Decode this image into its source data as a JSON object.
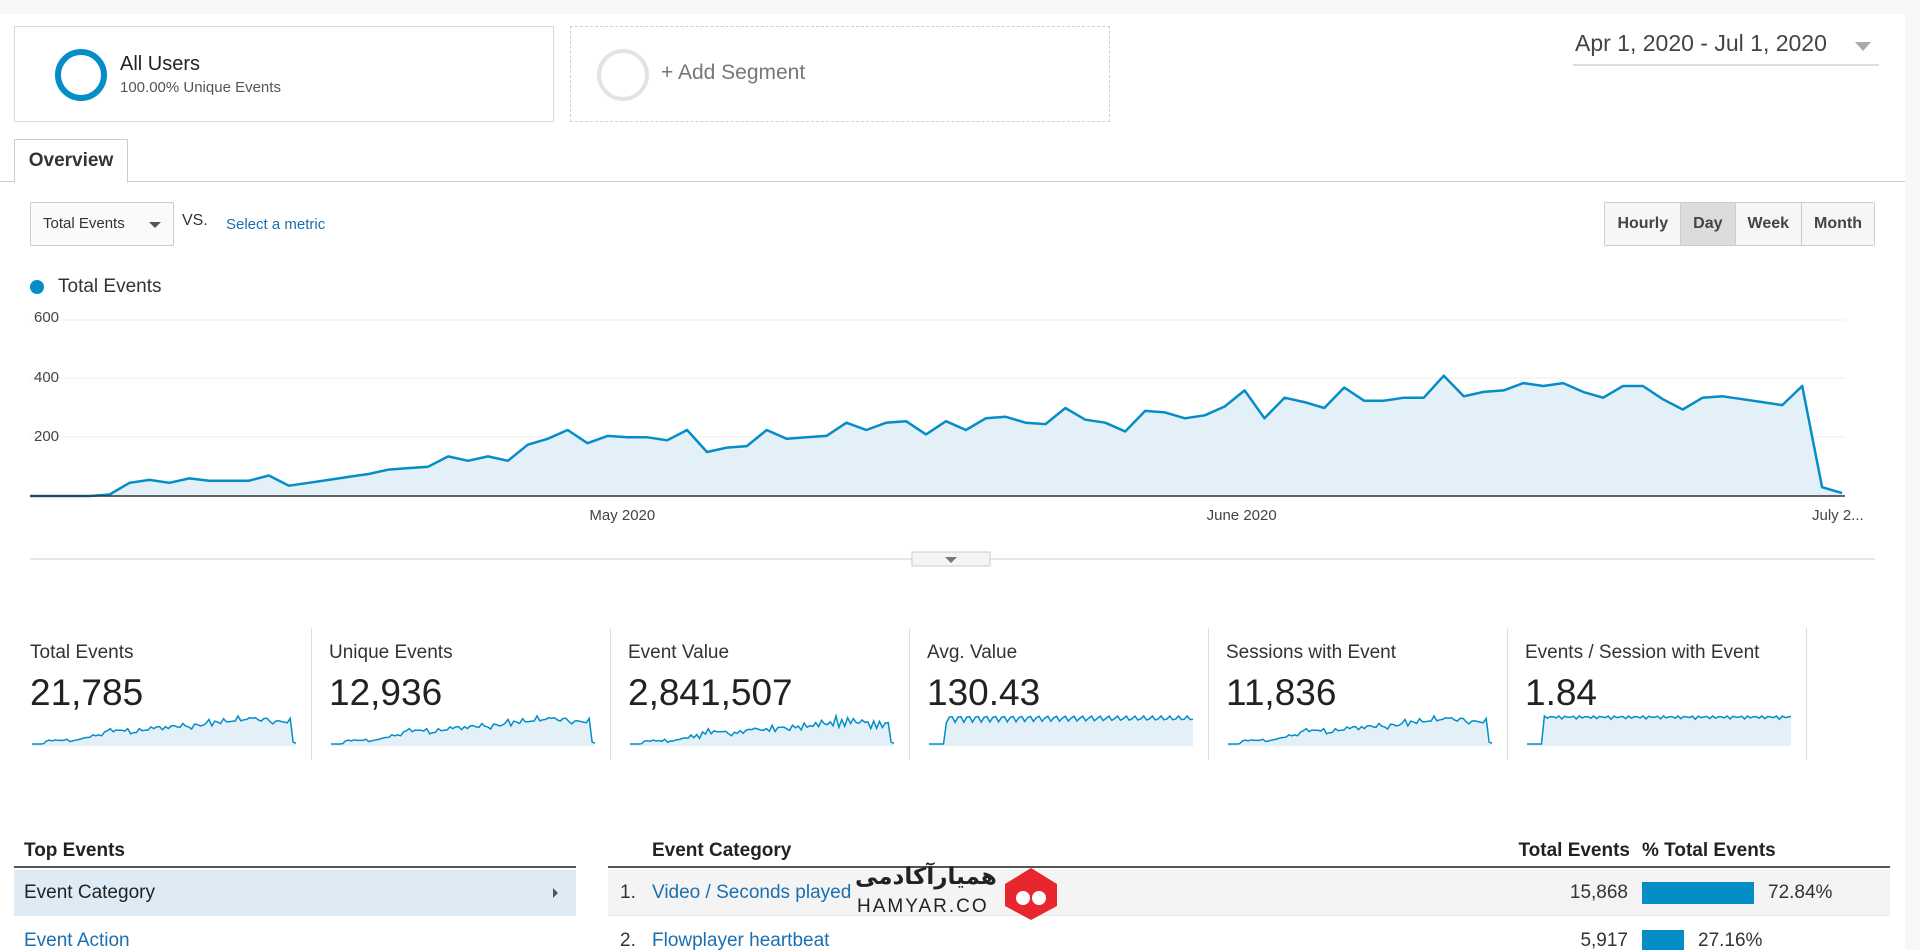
{
  "segments": {
    "all_users": {
      "title": "All Users",
      "subtitle": "100.00% Unique Events"
    },
    "add_segment": {
      "label": "+ Add Segment"
    }
  },
  "date_range": "Apr 1, 2020 - Jul 1, 2020",
  "tabs": [
    {
      "label": "Overview",
      "active": true
    }
  ],
  "controls": {
    "metric_select": "Total Events",
    "vs_label": "VS.",
    "select_metric": "Select a metric",
    "granularity": [
      "Hourly",
      "Day",
      "Week",
      "Month"
    ],
    "granularity_active": "Day"
  },
  "chart_data": {
    "type": "area",
    "legend": [
      "Total Events"
    ],
    "y_ticks": [
      "600",
      "400",
      "200"
    ],
    "ylim": [
      0,
      600
    ],
    "x_tick_labels": [
      "May 2020",
      "June 2020",
      "July 2..."
    ],
    "x_ticks_at_day": [
      30,
      61,
      91
    ],
    "series": [
      {
        "name": "Total Events",
        "color": "#058dc7",
        "values": [
          0,
          0,
          0,
          0,
          5,
          45,
          55,
          45,
          60,
          52,
          52,
          52,
          70,
          35,
          45,
          55,
          65,
          75,
          90,
          95,
          100,
          135,
          120,
          135,
          120,
          175,
          195,
          225,
          180,
          205,
          200,
          200,
          190,
          225,
          150,
          165,
          170,
          225,
          195,
          200,
          205,
          250,
          225,
          250,
          255,
          210,
          255,
          225,
          265,
          270,
          250,
          245,
          300,
          260,
          250,
          220,
          290,
          285,
          265,
          275,
          305,
          360,
          265,
          335,
          320,
          300,
          370,
          325,
          325,
          335,
          335,
          410,
          340,
          355,
          360,
          385,
          375,
          385,
          355,
          335,
          375,
          375,
          330,
          295,
          335,
          340,
          330,
          320,
          310,
          375,
          30,
          10
        ]
      }
    ]
  },
  "metrics": [
    {
      "label": "Total Events",
      "value": "21,785"
    },
    {
      "label": "Unique Events",
      "value": "12,936"
    },
    {
      "label": "Event Value",
      "value": "2,841,507"
    },
    {
      "label": "Avg. Value",
      "value": "130.43"
    },
    {
      "label": "Sessions with Event",
      "value": "11,836"
    },
    {
      "label": "Events / Session with Event",
      "value": "1.84"
    }
  ],
  "top_events": {
    "header": "Top Events",
    "items": [
      {
        "label": "Event Category",
        "selected": true
      },
      {
        "label": "Event Action",
        "selected": false
      }
    ]
  },
  "table": {
    "columns": [
      "Event Category",
      "Total Events",
      "% Total Events"
    ],
    "rows": [
      {
        "num": "1.",
        "category": "Video / Seconds played",
        "total": "15,868",
        "pct": "72.84%",
        "share": 0.7284
      },
      {
        "num": "2.",
        "category": "Flowplayer heartbeat",
        "total": "5,917",
        "pct": "27.16%",
        "share": 0.2716
      }
    ]
  },
  "watermark": {
    "fa": "همیارآکادمی",
    "en": "HAMYAR.CO"
  }
}
